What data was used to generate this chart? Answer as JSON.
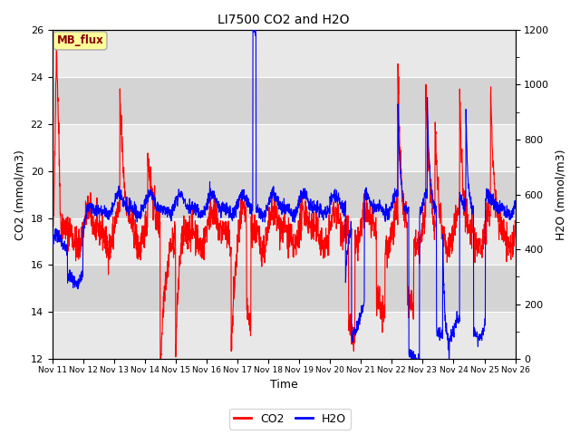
{
  "title": "LI7500 CO2 and H2O",
  "xlabel": "Time",
  "ylabel_left": "CO2 (mmol/m3)",
  "ylabel_right": "H2O (mmol/m3)",
  "xlim_days": [
    0,
    15
  ],
  "ylim_left": [
    12,
    26
  ],
  "ylim_right": [
    0,
    1200
  ],
  "xtick_labels": [
    "Nov 11",
    "Nov 12",
    "Nov 13",
    "Nov 14",
    "Nov 15",
    "Nov 16",
    "Nov 17",
    "Nov 18",
    "Nov 19",
    "Nov 20",
    "Nov 21",
    "Nov 22",
    "Nov 23",
    "Nov 24",
    "Nov 25",
    "Nov 26"
  ],
  "co2_color": "#FF0000",
  "h2o_color": "#0000FF",
  "legend_box_color": "#FFFF99",
  "legend_box_text": "MB_flux",
  "linewidth": 0.8,
  "grid_color": "#FFFFFF",
  "plot_bg_light": "#E8E8E8",
  "plot_bg_dark": "#D4D4D4",
  "fig_bg": "#FFFFFF",
  "title_fontsize": 10,
  "axis_fontsize": 9,
  "tick_fontsize": 8,
  "legend_fontsize": 9
}
